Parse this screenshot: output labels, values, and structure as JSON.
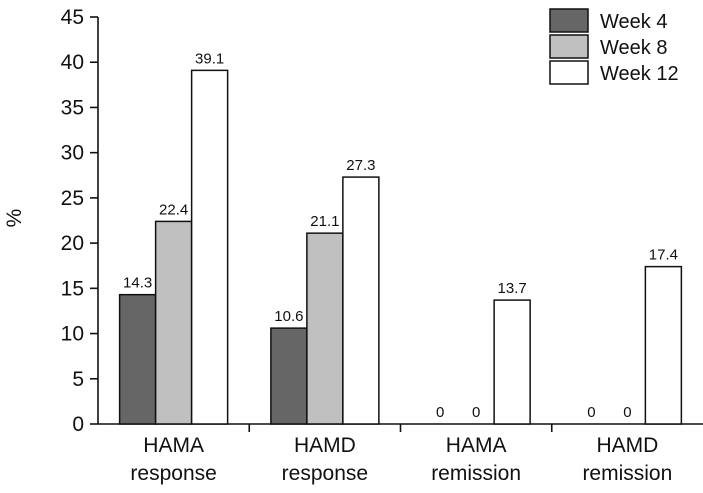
{
  "chart_data": {
    "type": "bar",
    "title": "",
    "xlabel": "",
    "ylabel": "%",
    "ylim": [
      0,
      45
    ],
    "yticks": [
      "0",
      "5",
      "10",
      "15",
      "20",
      "25",
      "30",
      "35",
      "40",
      "45"
    ],
    "grid": false,
    "legend_position": "top-right",
    "categories": [
      [
        "HAMA",
        "response"
      ],
      [
        "HAMD",
        "response"
      ],
      [
        "HAMA",
        "remission"
      ],
      [
        "HAMD",
        "remission"
      ]
    ],
    "series": [
      {
        "name": "Week 4",
        "color": "#666666",
        "values": [
          14.3,
          10.6,
          0,
          0
        ],
        "labels": [
          "14.3",
          "10.6",
          "0",
          "0"
        ]
      },
      {
        "name": "Week 8",
        "color": "#c0c0c0",
        "values": [
          22.4,
          21.1,
          0,
          0
        ],
        "labels": [
          "22.4",
          "21.1",
          "0",
          "0"
        ]
      },
      {
        "name": "Week 12",
        "color": "#ffffff",
        "values": [
          39.1,
          27.3,
          13.7,
          17.4
        ],
        "labels": [
          "39.1",
          "27.3",
          "13.7",
          "17.4"
        ]
      }
    ]
  }
}
